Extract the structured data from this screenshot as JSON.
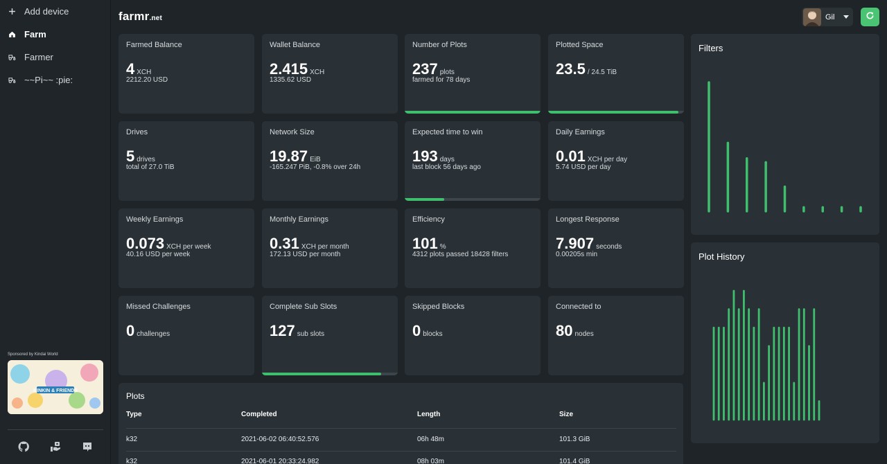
{
  "sidebar": {
    "items": [
      {
        "label": "Add device",
        "icon": "plus-icon"
      },
      {
        "label": "Farm",
        "icon": "home-icon",
        "active": true
      },
      {
        "label": "Farmer",
        "icon": "tractor-icon"
      },
      {
        "label": "~~Pi~~ :pie:",
        "icon": "tractor-icon"
      }
    ],
    "sponsor_label": "Sponsored by Kindai World",
    "sponsor_caption": "KINKIN & FRIENDS",
    "footer_icons": [
      "github-icon",
      "donate-icon",
      "discord-icon"
    ]
  },
  "header": {
    "logo_main": "farmr",
    "logo_suffix": ".net",
    "user_name": "Gil"
  },
  "colors": {
    "accent": "#3fbf6e",
    "card_bg": "#2a3136",
    "page_bg": "#1e2428"
  },
  "cards": [
    {
      "title": "Farmed Balance",
      "value": "4",
      "unit": "XCH",
      "sub": "2212.20 USD"
    },
    {
      "title": "Wallet Balance",
      "value": "2.415",
      "unit": "XCH",
      "sub": "1335.62 USD"
    },
    {
      "title": "Number of Plots",
      "value": "237",
      "unit": "plots",
      "sub": "farmed for 78 days",
      "progress": 1.0
    },
    {
      "title": "Plotted Space",
      "value": "23.5",
      "unit": "/ 24.5 TiB",
      "sub": "",
      "progress": 0.96
    },
    {
      "title": "Drives",
      "value": "5",
      "unit": "drives",
      "sub": "total of 27.0 TiB"
    },
    {
      "title": "Network Size",
      "value": "19.87",
      "unit": "EiB",
      "sub": "-165.247 PiB, -0.8% over 24h"
    },
    {
      "title": "Expected time to win",
      "value": "193",
      "unit": "days",
      "sub": "last block 56 days ago",
      "progress": 0.29
    },
    {
      "title": "Daily Earnings",
      "value": "0.01",
      "unit": "XCH per day",
      "sub": "5.74 USD per day"
    },
    {
      "title": "Weekly Earnings",
      "value": "0.073",
      "unit": "XCH per week",
      "sub": "40.16 USD per week"
    },
    {
      "title": "Monthly Earnings",
      "value": "0.31",
      "unit": "XCH per month",
      "sub": "172.13 USD per month"
    },
    {
      "title": "Efficiency",
      "value": "101",
      "unit": "%",
      "sub": "4312 plots passed 18428 filters"
    },
    {
      "title": "Longest Response",
      "value": "7.907",
      "unit": "seconds",
      "sub": "0.00205s min"
    },
    {
      "title": "Missed Challenges",
      "value": "0",
      "unit": "challenges",
      "sub": ""
    },
    {
      "title": "Complete Sub Slots",
      "value": "127",
      "unit": "sub slots",
      "sub": "",
      "progress": 0.88
    },
    {
      "title": "Skipped Blocks",
      "value": "0",
      "unit": "blocks",
      "sub": ""
    },
    {
      "title": "Connected to",
      "value": "80",
      "unit": "nodes",
      "sub": ""
    }
  ],
  "plots": {
    "title": "Plots",
    "columns": [
      "Type",
      "Completed",
      "Length",
      "Size"
    ],
    "rows": [
      [
        "k32",
        "2021-06-02 06:40:52.576",
        "06h 48m",
        "101.3 GiB"
      ],
      [
        "k32",
        "2021-06-01 20:33:24.982",
        "08h 03m",
        "101.4 GiB"
      ]
    ]
  },
  "filters_panel": {
    "title": "Filters"
  },
  "plot_history_panel": {
    "title": "Plot History"
  },
  "chart_data": [
    {
      "type": "bar",
      "title": "Filters",
      "values": [
        100,
        53,
        41,
        38,
        19,
        3,
        3,
        3,
        3
      ],
      "ylim": [
        0,
        100
      ],
      "color": "#3fbf6e"
    },
    {
      "type": "bar",
      "title": "Plot History",
      "values": [
        5,
        5,
        5,
        6,
        7,
        6,
        7,
        6,
        5,
        6,
        2,
        4,
        5,
        5,
        5,
        5,
        2,
        6,
        6,
        4,
        6,
        1
      ],
      "ylim": [
        0,
        7
      ],
      "color": "#3fbf6e"
    }
  ]
}
